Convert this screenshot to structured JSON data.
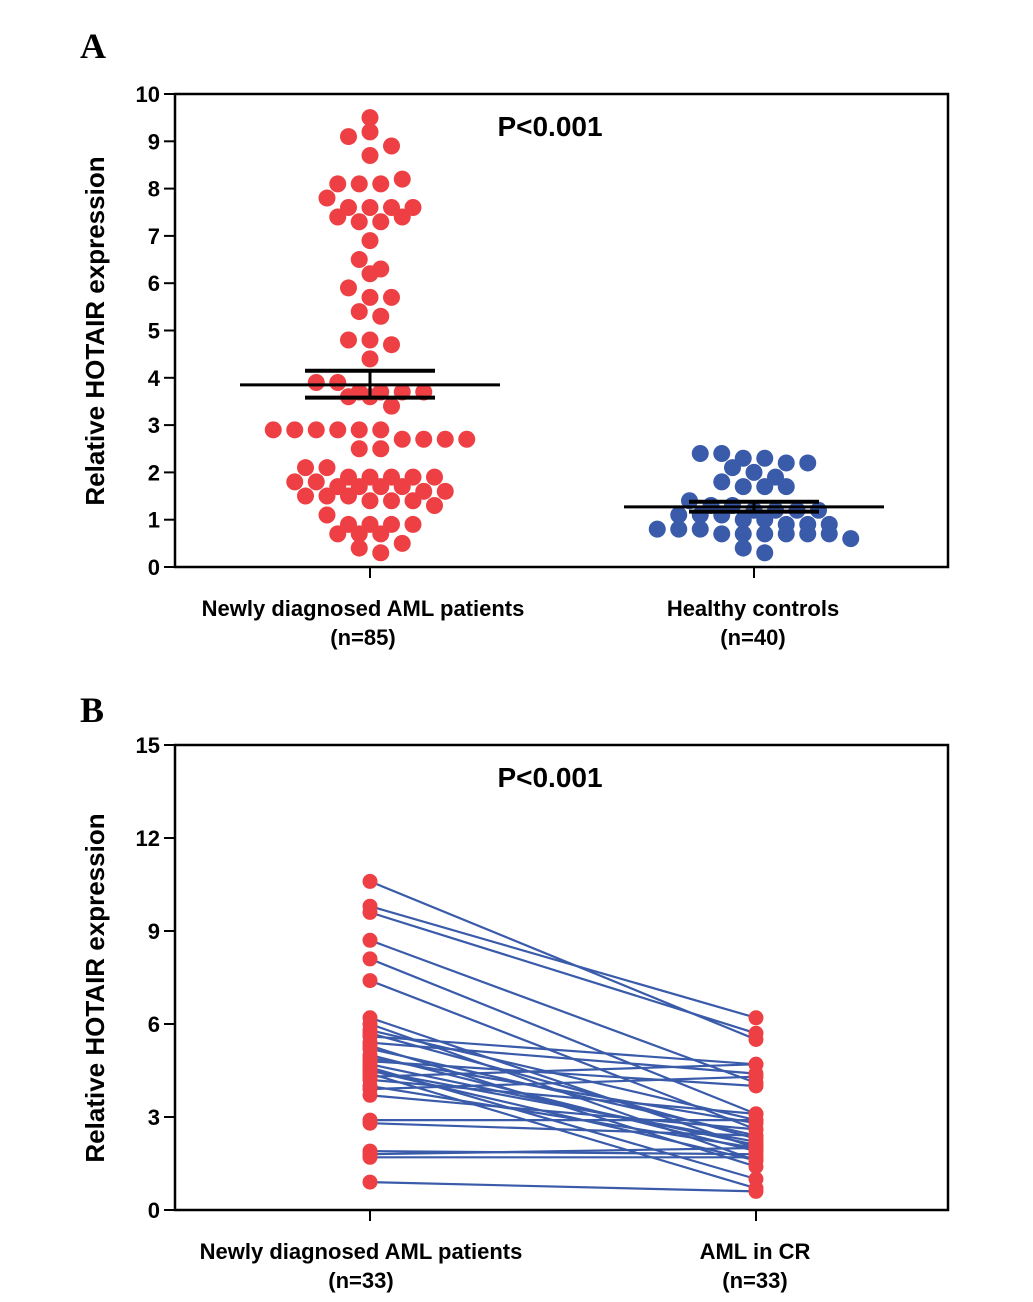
{
  "chart_data": [
    {
      "panel": "A",
      "type": "scatter",
      "ylabel": "Relative HOTAIR expression",
      "ylim": [
        0,
        10
      ],
      "yticks": [
        0,
        1,
        2,
        3,
        4,
        5,
        6,
        7,
        8,
        9,
        10
      ],
      "annotation": "P<0.001",
      "colors": {
        "point_red": "#EE4044",
        "point_blue": "#3A5BAA",
        "line": "#000000"
      },
      "groups": [
        {
          "name": "Newly diagnosed AML patients",
          "n_label": "(n=85)",
          "color": "#EE4044",
          "mean": 3.85,
          "sem_low": 3.58,
          "sem_high": 4.15,
          "values": [
            9.5,
            9.1,
            9.2,
            8.9,
            8.7,
            8.1,
            8.1,
            8.1,
            8.2,
            7.8,
            7.6,
            7.6,
            7.6,
            7.6,
            7.4,
            7.3,
            7.3,
            7.4,
            6.9,
            6.5,
            6.3,
            6.2,
            5.9,
            5.7,
            5.7,
            5.4,
            5.3,
            4.8,
            4.8,
            4.7,
            4.4,
            3.9,
            3.9,
            3.7,
            3.7,
            3.6,
            3.6,
            3.7,
            3.7,
            3.4,
            2.9,
            2.9,
            2.9,
            2.9,
            2.9,
            2.9,
            2.7,
            2.7,
            2.7,
            2.7,
            2.5,
            2.5,
            2.1,
            2.1,
            1.9,
            1.9,
            1.9,
            1.9,
            1.9,
            1.8,
            1.8,
            1.7,
            1.7,
            1.7,
            1.7,
            1.6,
            1.6,
            1.5,
            1.5,
            1.5,
            1.4,
            1.4,
            1.4,
            1.3,
            1.1,
            0.9,
            0.9,
            0.9,
            0.9,
            0.7,
            0.7,
            0.7,
            0.5,
            0.4,
            0.3
          ]
        },
        {
          "name": "Healthy controls",
          "n_label": "(n=40)",
          "color": "#3A5BAA",
          "mean": 1.27,
          "sem_low": 1.17,
          "sem_high": 1.38,
          "values": [
            2.4,
            2.4,
            2.3,
            2.3,
            2.2,
            2.2,
            2.1,
            2.0,
            1.9,
            1.8,
            1.7,
            1.7,
            1.7,
            1.4,
            1.3,
            1.3,
            1.2,
            1.2,
            1.2,
            1.2,
            1.1,
            1.1,
            1.1,
            1.0,
            1.0,
            0.9,
            0.9,
            0.9,
            0.8,
            0.8,
            0.8,
            0.7,
            0.7,
            0.7,
            0.7,
            0.7,
            0.7,
            0.6,
            0.4,
            0.3
          ]
        }
      ]
    },
    {
      "panel": "B",
      "type": "line",
      "ylabel": "Relative HOTAIR expression",
      "ylim": [
        0,
        15
      ],
      "yticks": [
        0,
        3,
        6,
        9,
        12,
        15
      ],
      "annotation": "P<0.001",
      "colors": {
        "point": "#EE4044",
        "line": "#3A5BAA"
      },
      "categories": [
        {
          "name": "Newly diagnosed AML patients",
          "n_label": "(n=33)"
        },
        {
          "name": "AML in CR",
          "n_label": "(n=33)"
        }
      ],
      "pairs": [
        [
          10.6,
          5.5
        ],
        [
          9.8,
          6.2
        ],
        [
          9.6,
          5.7
        ],
        [
          8.7,
          4.1
        ],
        [
          8.1,
          3.1
        ],
        [
          7.4,
          2.6
        ],
        [
          6.2,
          2.0
        ],
        [
          6.0,
          1.6
        ],
        [
          5.8,
          2.9
        ],
        [
          5.7,
          2.3
        ],
        [
          5.6,
          4.7
        ],
        [
          5.4,
          4.4
        ],
        [
          5.3,
          1.4
        ],
        [
          5.2,
          2.4
        ],
        [
          5.0,
          1.9
        ],
        [
          4.9,
          2.8
        ],
        [
          4.8,
          4.0
        ],
        [
          4.7,
          2.1
        ],
        [
          4.6,
          1.0
        ],
        [
          4.5,
          1.6
        ],
        [
          4.5,
          2.2
        ],
        [
          4.4,
          0.7
        ],
        [
          4.3,
          4.7
        ],
        [
          4.2,
          3.1
        ],
        [
          4.0,
          2.0
        ],
        [
          3.9,
          4.3
        ],
        [
          3.7,
          2.6
        ],
        [
          2.9,
          2.9
        ],
        [
          2.8,
          2.4
        ],
        [
          1.9,
          1.8
        ],
        [
          1.8,
          2.0
        ],
        [
          1.7,
          1.7
        ],
        [
          0.9,
          0.6
        ]
      ]
    }
  ]
}
